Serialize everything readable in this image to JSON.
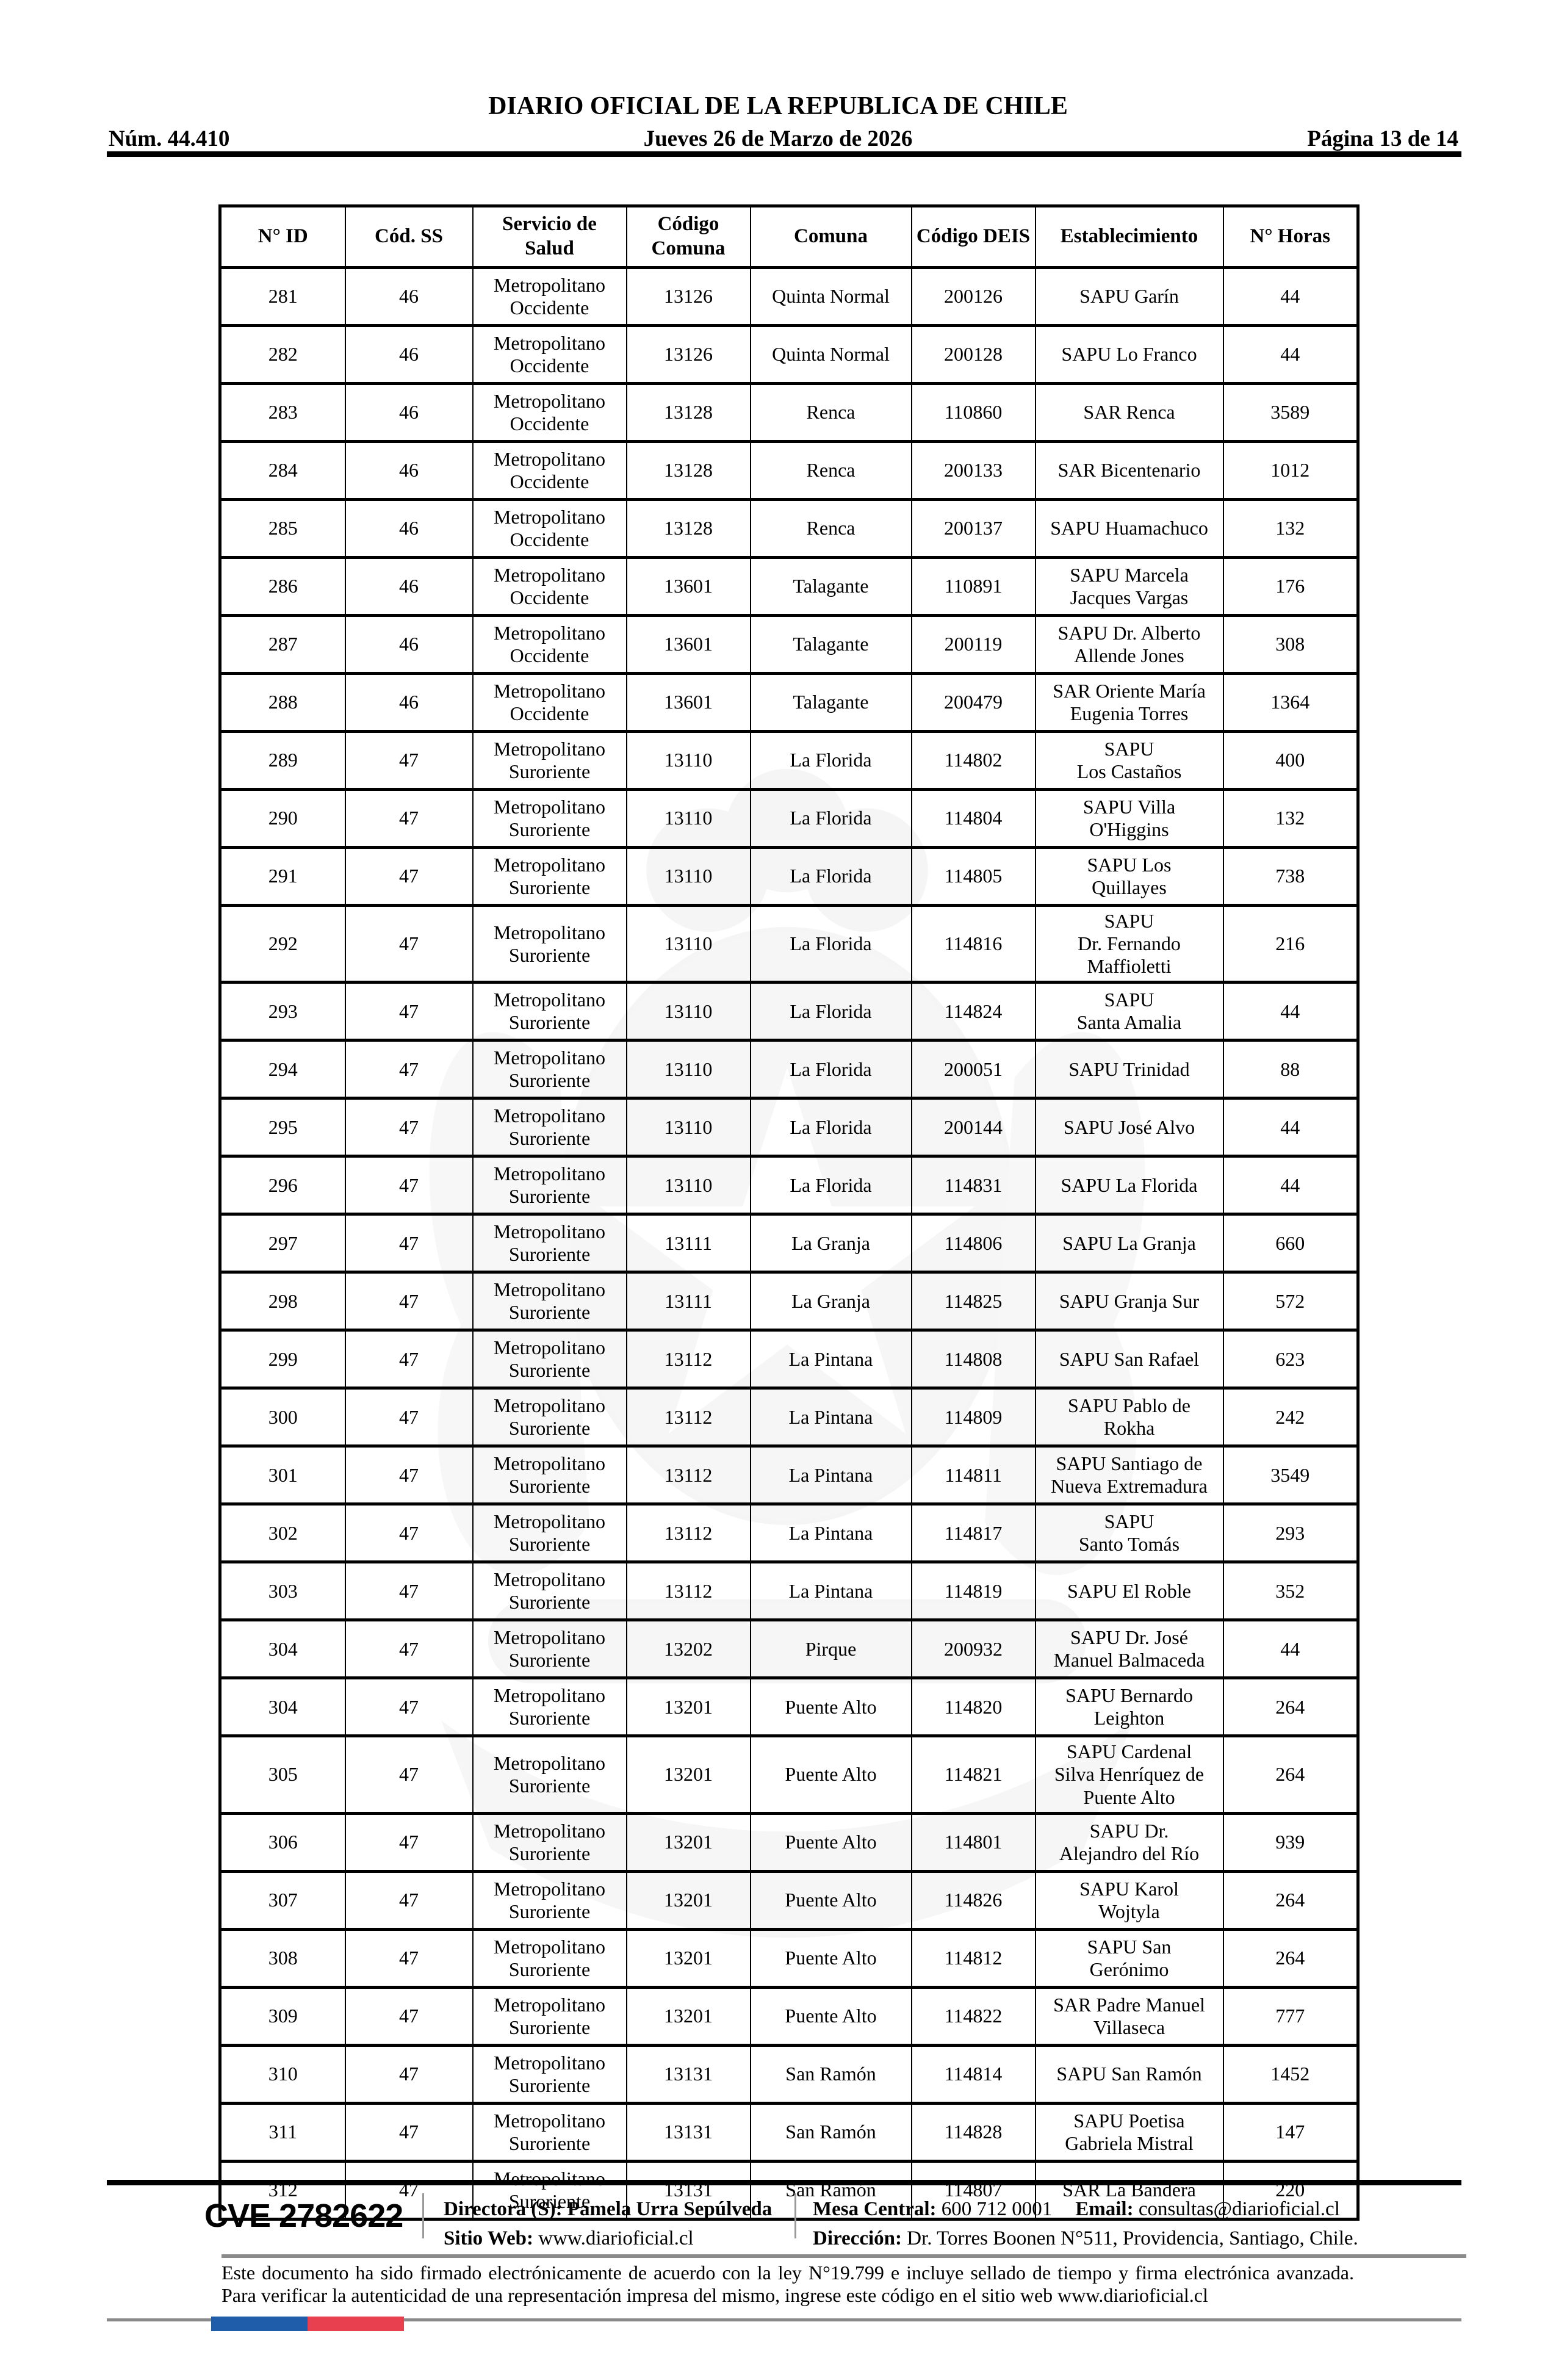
{
  "header": {
    "title": "DIARIO OFICIAL DE LA REPUBLICA DE CHILE",
    "issue": "Núm. 44.410",
    "date": "Jueves 26 de Marzo de 2026",
    "page": "Página 13 de 14"
  },
  "table": {
    "columns": [
      {
        "key": "id",
        "label": "N° ID"
      },
      {
        "key": "cod-ss",
        "label": "Cód. SS"
      },
      {
        "key": "servicio",
        "label": "Servicio de Salud"
      },
      {
        "key": "codigo-comuna",
        "label": "Código Comuna"
      },
      {
        "key": "comuna",
        "label": "Comuna"
      },
      {
        "key": "codigo-deis",
        "label": "Código DEIS"
      },
      {
        "key": "establecimiento",
        "label": "Establecimiento"
      },
      {
        "key": "horas",
        "label": "N° Horas"
      }
    ],
    "rows": [
      [
        "281",
        "46",
        "Metropolitano\nOccidente",
        "13126",
        "Quinta Normal",
        "200126",
        "SAPU Garín",
        "44"
      ],
      [
        "282",
        "46",
        "Metropolitano\nOccidente",
        "13126",
        "Quinta Normal",
        "200128",
        "SAPU Lo Franco",
        "44"
      ],
      [
        "283",
        "46",
        "Metropolitano\nOccidente",
        "13128",
        "Renca",
        "110860",
        "SAR Renca",
        "3589"
      ],
      [
        "284",
        "46",
        "Metropolitano\nOccidente",
        "13128",
        "Renca",
        "200133",
        "SAR Bicentenario",
        "1012"
      ],
      [
        "285",
        "46",
        "Metropolitano\nOccidente",
        "13128",
        "Renca",
        "200137",
        "SAPU Huamachuco",
        "132"
      ],
      [
        "286",
        "46",
        "Metropolitano\nOccidente",
        "13601",
        "Talagante",
        "110891",
        "SAPU Marcela\nJacques Vargas",
        "176"
      ],
      [
        "287",
        "46",
        "Metropolitano\nOccidente",
        "13601",
        "Talagante",
        "200119",
        "SAPU Dr. Alberto\nAllende Jones",
        "308"
      ],
      [
        "288",
        "46",
        "Metropolitano\nOccidente",
        "13601",
        "Talagante",
        "200479",
        "SAR Oriente María\nEugenia Torres",
        "1364"
      ],
      [
        "289",
        "47",
        "Metropolitano\nSuroriente",
        "13110",
        "La Florida",
        "114802",
        "SAPU\nLos Castaños",
        "400"
      ],
      [
        "290",
        "47",
        "Metropolitano\nSuroriente",
        "13110",
        "La Florida",
        "114804",
        "SAPU Villa\nO'Higgins",
        "132"
      ],
      [
        "291",
        "47",
        "Metropolitano\nSuroriente",
        "13110",
        "La Florida",
        "114805",
        "SAPU Los\nQuillayes",
        "738"
      ],
      [
        "292",
        "47",
        "Metropolitano\nSuroriente",
        "13110",
        "La Florida",
        "114816",
        "SAPU\nDr. Fernando\nMaffioletti",
        "216"
      ],
      [
        "293",
        "47",
        "Metropolitano\nSuroriente",
        "13110",
        "La Florida",
        "114824",
        "SAPU\nSanta Amalia",
        "44"
      ],
      [
        "294",
        "47",
        "Metropolitano\nSuroriente",
        "13110",
        "La Florida",
        "200051",
        "SAPU Trinidad",
        "88"
      ],
      [
        "295",
        "47",
        "Metropolitano\nSuroriente",
        "13110",
        "La Florida",
        "200144",
        "SAPU José Alvo",
        "44"
      ],
      [
        "296",
        "47",
        "Metropolitano\nSuroriente",
        "13110",
        "La Florida",
        "114831",
        "SAPU La Florida",
        "44"
      ],
      [
        "297",
        "47",
        "Metropolitano\nSuroriente",
        "13111",
        "La Granja",
        "114806",
        "SAPU La Granja",
        "660"
      ],
      [
        "298",
        "47",
        "Metropolitano\nSuroriente",
        "13111",
        "La Granja",
        "114825",
        "SAPU Granja Sur",
        "572"
      ],
      [
        "299",
        "47",
        "Metropolitano\nSuroriente",
        "13112",
        "La Pintana",
        "114808",
        "SAPU San Rafael",
        "623"
      ],
      [
        "300",
        "47",
        "Metropolitano\nSuroriente",
        "13112",
        "La Pintana",
        "114809",
        "SAPU Pablo de\nRokha",
        "242"
      ],
      [
        "301",
        "47",
        "Metropolitano\nSuroriente",
        "13112",
        "La Pintana",
        "114811",
        "SAPU Santiago de\nNueva Extremadura",
        "3549"
      ],
      [
        "302",
        "47",
        "Metropolitano\nSuroriente",
        "13112",
        "La Pintana",
        "114817",
        "SAPU\nSanto Tomás",
        "293"
      ],
      [
        "303",
        "47",
        "Metropolitano\nSuroriente",
        "13112",
        "La Pintana",
        "114819",
        "SAPU El Roble",
        "352"
      ],
      [
        "304",
        "47",
        "Metropolitano\nSuroriente",
        "13202",
        "Pirque",
        "200932",
        "SAPU Dr. José\nManuel Balmaceda",
        "44"
      ],
      [
        "304",
        "47",
        "Metropolitano\nSuroriente",
        "13201",
        "Puente Alto",
        "114820",
        "SAPU Bernardo\nLeighton",
        "264"
      ],
      [
        "305",
        "47",
        "Metropolitano\nSuroriente",
        "13201",
        "Puente Alto",
        "114821",
        "SAPU Cardenal\nSilva Henríquez de\nPuente Alto",
        "264"
      ],
      [
        "306",
        "47",
        "Metropolitano\nSuroriente",
        "13201",
        "Puente Alto",
        "114801",
        "SAPU Dr.\nAlejandro del Río",
        "939"
      ],
      [
        "307",
        "47",
        "Metropolitano\nSuroriente",
        "13201",
        "Puente Alto",
        "114826",
        "SAPU Karol\nWojtyla",
        "264"
      ],
      [
        "308",
        "47",
        "Metropolitano\nSuroriente",
        "13201",
        "Puente Alto",
        "114812",
        "SAPU San\nGerónimo",
        "264"
      ],
      [
        "309",
        "47",
        "Metropolitano\nSuroriente",
        "13201",
        "Puente Alto",
        "114822",
        "SAR Padre Manuel\nVillaseca",
        "777"
      ],
      [
        "310",
        "47",
        "Metropolitano\nSuroriente",
        "13131",
        "San Ramón",
        "114814",
        "SAPU San Ramón",
        "1452"
      ],
      [
        "311",
        "47",
        "Metropolitano\nSuroriente",
        "13131",
        "San Ramón",
        "114828",
        "SAPU Poetisa\nGabriela Mistral",
        "147"
      ],
      [
        "312",
        "47",
        "Metropolitano\nSuroriente",
        "13131",
        "San Ramón",
        "114807",
        "SAR La Bandera",
        "220"
      ]
    ]
  },
  "footer": {
    "cve": "CVE 2782622",
    "directora_label": "Directora (S):",
    "directora": "Pamela Urra Sepúlveda",
    "sitio_label": "Sitio Web:",
    "sitio": "www.diarioficial.cl",
    "mesa_label": "Mesa Central:",
    "mesa": "600 712 0001",
    "email_label": "Email:",
    "email": "consultas@diarioficial.cl",
    "direccion_label": "Dirección:",
    "direccion": "Dr. Torres Boonen N°511, Providencia, Santiago, Chile.",
    "note": "Este documento ha sido firmado electrónicamente de acuerdo con la ley N°19.799 e incluye sellado de tiempo y firma electrónica avanzada. Para verificar la autenticidad de una representación impresa del mismo, ingrese este código en el sitio web www.diarioficial.cl"
  },
  "colors": {
    "flag_blue": "#1F5CA9",
    "flag_red": "#E8404E",
    "rule_gray": "#8A8A8A"
  }
}
